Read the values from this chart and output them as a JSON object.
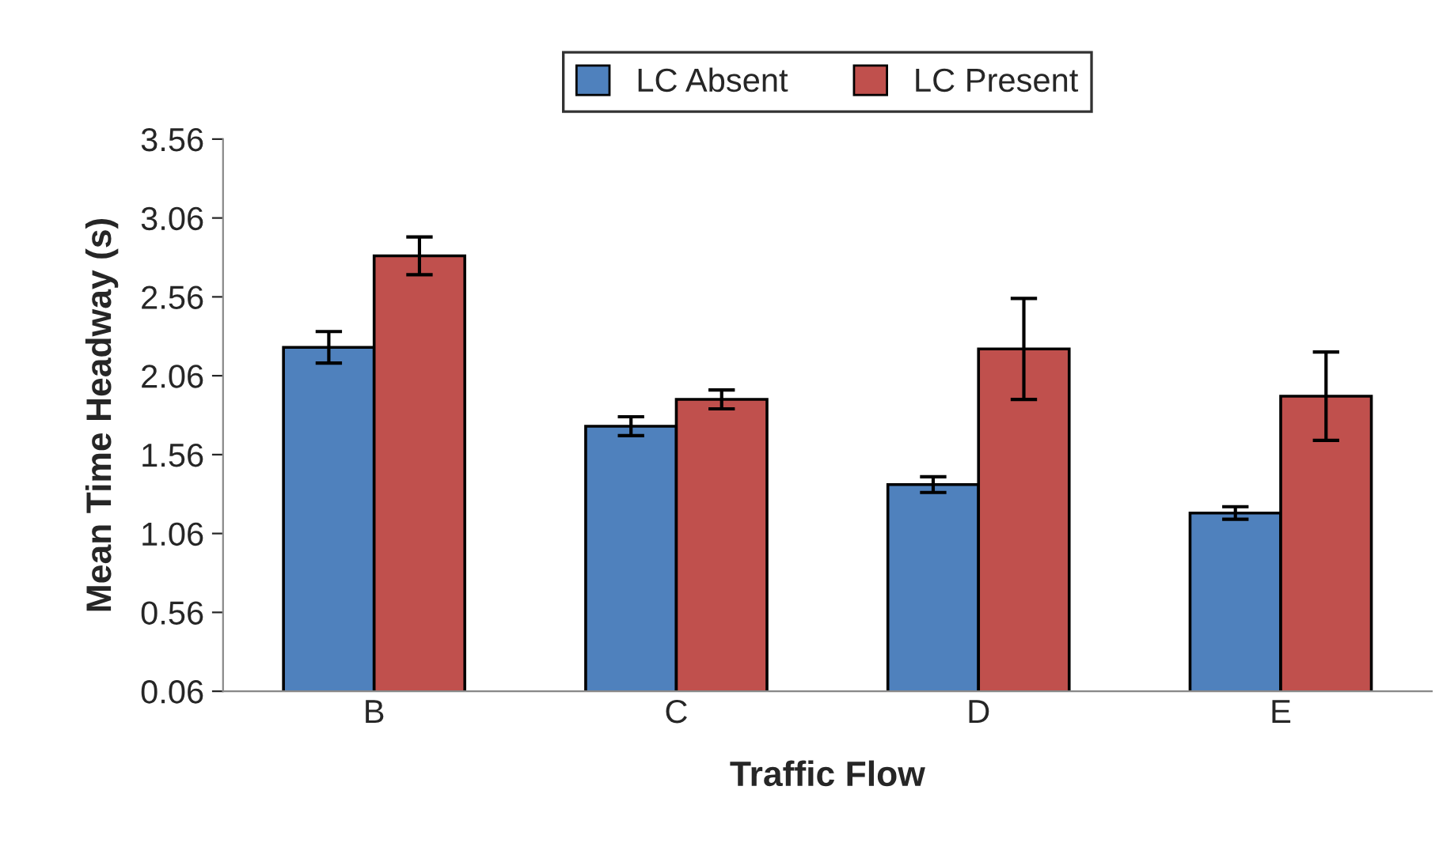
{
  "chart_data": {
    "type": "bar",
    "xlabel": "Traffic Flow",
    "ylabel": "Mean Time Headway (s)",
    "categories": [
      "B",
      "C",
      "D",
      "E"
    ],
    "series": [
      {
        "name": "LC Absent",
        "color": "#4f81bd",
        "values": [
          2.24,
          1.74,
          1.37,
          1.19
        ],
        "errors": [
          0.1,
          0.06,
          0.05,
          0.04
        ]
      },
      {
        "name": "LC Present",
        "color": "#c0504d",
        "values": [
          2.82,
          1.91,
          2.23,
          1.93
        ],
        "errors": [
          0.12,
          0.06,
          0.32,
          0.28
        ]
      }
    ],
    "ylim": [
      0.06,
      3.56
    ],
    "yticks": [
      {
        "value": 0.06,
        "label": "0.06"
      },
      {
        "value": 0.56,
        "label": "0.56"
      },
      {
        "value": 1.06,
        "label": "1.06"
      },
      {
        "value": 1.56,
        "label": "1.56"
      },
      {
        "value": 2.06,
        "label": "2.06"
      },
      {
        "value": 2.56,
        "label": "2.56"
      },
      {
        "value": 3.06,
        "label": "3.06"
      },
      {
        "value": 3.56,
        "label": "3.56"
      }
    ],
    "grid": false,
    "legend": "top"
  }
}
